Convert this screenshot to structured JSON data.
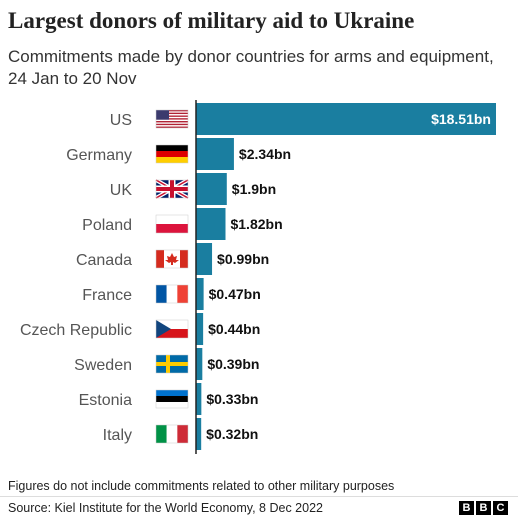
{
  "title": "Largest donors of military aid to Ukraine",
  "subtitle": "Commitments made by donor countries for arms and equipment, 24 Jan to 20 Nov",
  "note": "Figures do not include commitments related to other military purposes",
  "source": "Source: Kiel Institute for the World Economy, 8 Dec 2022",
  "logo_letters": [
    "B",
    "B",
    "C"
  ],
  "colors": {
    "bar": "#1a7ea0",
    "axis": "#222222",
    "label": "#555555",
    "value": "#111111",
    "value_inside": "#ffffff"
  },
  "chart_data": {
    "type": "bar",
    "orientation": "horizontal",
    "title": "Largest donors of military aid to Ukraine",
    "subtitle": "Commitments made by donor countries for arms and equipment, 24 Jan to 20 Nov",
    "categories": [
      "US",
      "Germany",
      "UK",
      "Poland",
      "Canada",
      "France",
      "Czech Republic",
      "Sweden",
      "Estonia",
      "Italy"
    ],
    "values": [
      18.51,
      2.34,
      1.9,
      1.82,
      0.99,
      0.47,
      0.44,
      0.39,
      0.33,
      0.32
    ],
    "value_labels": [
      "$18.51bn",
      "$2.34bn",
      "$1.9bn",
      "$1.82bn",
      "$0.99bn",
      "$0.47bn",
      "$0.44bn",
      "$0.39bn",
      "$0.33bn",
      "$0.32bn"
    ],
    "flags": [
      "us-flag",
      "germany-flag",
      "uk-flag",
      "poland-flag",
      "canada-flag",
      "france-flag",
      "czech-flag",
      "sweden-flag",
      "estonia-flag",
      "italy-flag"
    ],
    "unit": "$bn",
    "xlim": [
      0,
      18.51
    ],
    "grid": false,
    "legend": "none"
  }
}
